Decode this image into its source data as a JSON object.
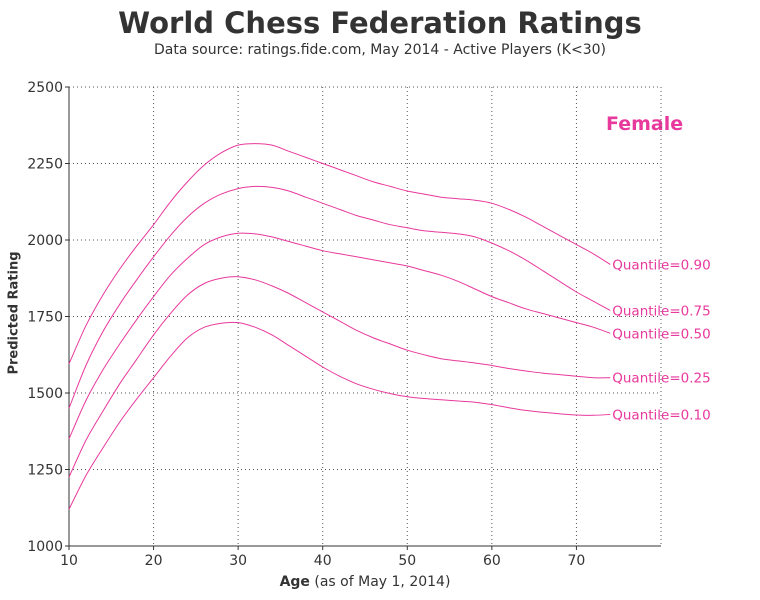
{
  "chart_data": {
    "type": "line",
    "title": "World Chess Federation Ratings",
    "subtitle": "Data source: ratings.fide.com, May 2014 - Active Players (K<30)",
    "xlabel_bold": "Age",
    "xlabel_rest": " (as of May 1, 2014)",
    "ylabel": "Predicted Rating",
    "panel_label": "Female",
    "xlim": [
      10,
      80
    ],
    "ylim": [
      1000,
      2500
    ],
    "xticks": [
      10,
      20,
      30,
      40,
      50,
      60,
      70
    ],
    "yticks": [
      1000,
      1250,
      1500,
      1750,
      2000,
      2250,
      2500
    ],
    "grid": true,
    "line_color": "#e8399d",
    "series": [
      {
        "name": "Quantile=0.90",
        "x": [
          10,
          12,
          14,
          16,
          18,
          20,
          22,
          24,
          26,
          28,
          30,
          32,
          34,
          36,
          38,
          40,
          42,
          44,
          46,
          48,
          50,
          52,
          54,
          56,
          58,
          60,
          62,
          64,
          66,
          68,
          70,
          72,
          74
        ],
        "y": [
          1595,
          1720,
          1820,
          1905,
          1980,
          2050,
          2125,
          2190,
          2245,
          2285,
          2310,
          2315,
          2310,
          2290,
          2270,
          2250,
          2230,
          2210,
          2190,
          2175,
          2160,
          2150,
          2140,
          2135,
          2130,
          2120,
          2100,
          2075,
          2045,
          2015,
          1985,
          1955,
          1920
        ]
      },
      {
        "name": "Quantile=0.75",
        "x": [
          10,
          12,
          14,
          16,
          18,
          20,
          22,
          24,
          26,
          28,
          30,
          32,
          34,
          36,
          38,
          40,
          42,
          44,
          46,
          48,
          50,
          52,
          54,
          56,
          58,
          60,
          62,
          64,
          66,
          68,
          70,
          72,
          74
        ],
        "y": [
          1450,
          1590,
          1700,
          1790,
          1870,
          1945,
          2015,
          2075,
          2120,
          2150,
          2168,
          2175,
          2172,
          2160,
          2140,
          2120,
          2100,
          2080,
          2065,
          2050,
          2040,
          2030,
          2025,
          2020,
          2010,
          1990,
          1965,
          1935,
          1900,
          1865,
          1830,
          1800,
          1770
        ]
      },
      {
        "name": "Quantile=0.50",
        "x": [
          10,
          12,
          14,
          16,
          18,
          20,
          22,
          24,
          26,
          28,
          30,
          32,
          34,
          36,
          38,
          40,
          42,
          44,
          46,
          48,
          50,
          52,
          54,
          56,
          58,
          60,
          62,
          64,
          66,
          68,
          70,
          72,
          74
        ],
        "y": [
          1350,
          1475,
          1575,
          1660,
          1740,
          1815,
          1885,
          1940,
          1985,
          2010,
          2022,
          2020,
          2010,
          1995,
          1980,
          1965,
          1955,
          1945,
          1935,
          1925,
          1915,
          1900,
          1885,
          1865,
          1840,
          1815,
          1795,
          1775,
          1760,
          1745,
          1730,
          1715,
          1695
        ]
      },
      {
        "name": "Quantile=0.25",
        "x": [
          10,
          12,
          14,
          16,
          18,
          20,
          22,
          24,
          26,
          28,
          30,
          32,
          34,
          36,
          38,
          40,
          42,
          44,
          46,
          48,
          50,
          52,
          54,
          56,
          58,
          60,
          62,
          64,
          66,
          68,
          70,
          72,
          74
        ],
        "y": [
          1225,
          1345,
          1440,
          1530,
          1610,
          1690,
          1760,
          1820,
          1858,
          1875,
          1880,
          1870,
          1850,
          1825,
          1795,
          1765,
          1735,
          1705,
          1680,
          1660,
          1640,
          1625,
          1612,
          1605,
          1598,
          1590,
          1580,
          1572,
          1565,
          1560,
          1555,
          1550,
          1550
        ]
      },
      {
        "name": "Quantile=0.10",
        "x": [
          10,
          12,
          14,
          16,
          18,
          20,
          22,
          24,
          26,
          28,
          30,
          32,
          34,
          36,
          38,
          40,
          42,
          44,
          46,
          48,
          50,
          52,
          54,
          56,
          58,
          60,
          62,
          64,
          66,
          68,
          70,
          72,
          74
        ],
        "y": [
          1120,
          1230,
          1320,
          1405,
          1480,
          1550,
          1620,
          1680,
          1715,
          1728,
          1730,
          1715,
          1690,
          1655,
          1620,
          1585,
          1555,
          1530,
          1512,
          1498,
          1488,
          1482,
          1478,
          1474,
          1470,
          1462,
          1452,
          1443,
          1437,
          1432,
          1428,
          1427,
          1430
        ]
      }
    ]
  }
}
